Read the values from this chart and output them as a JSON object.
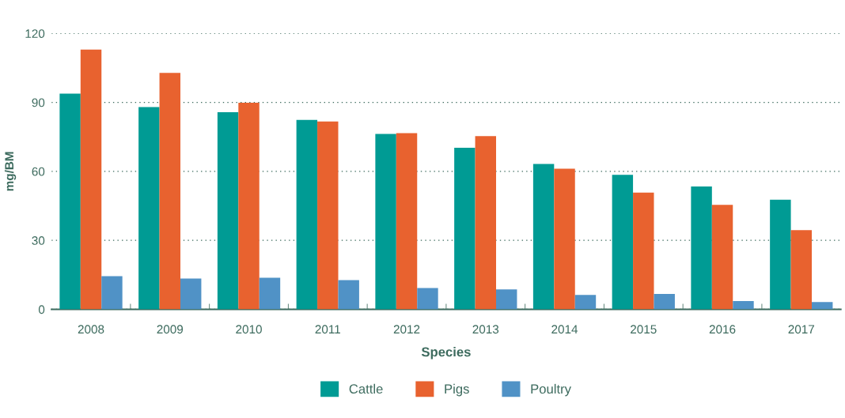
{
  "chart_data": {
    "type": "bar",
    "xlabel": "Species",
    "ylabel": "mg/BM",
    "categories": [
      "2008",
      "2009",
      "2010",
      "2011",
      "2012",
      "2013",
      "2014",
      "2015",
      "2016",
      "2017"
    ],
    "series": [
      {
        "name": "Cattle",
        "color": "#009b94",
        "values": [
          93.8,
          88.0,
          85.7,
          82.4,
          76.3,
          70.3,
          63.2,
          58.5,
          53.4,
          47.7
        ]
      },
      {
        "name": "Pigs",
        "color": "#e8622f",
        "values": [
          113,
          102.8,
          89.9,
          81.7,
          76.6,
          75.3,
          61.2,
          50.8,
          45.4,
          34.4
        ]
      },
      {
        "name": "Poultry",
        "color": "#5092c6",
        "values": [
          14.4,
          13.4,
          13.7,
          12.7,
          9.3,
          8.7,
          6.3,
          6.7,
          3.6,
          3.2
        ]
      }
    ],
    "ylim": [
      0,
      120
    ],
    "yticks": [
      0,
      30,
      60,
      90,
      120
    ],
    "grid": "y",
    "legend": "bottom"
  }
}
